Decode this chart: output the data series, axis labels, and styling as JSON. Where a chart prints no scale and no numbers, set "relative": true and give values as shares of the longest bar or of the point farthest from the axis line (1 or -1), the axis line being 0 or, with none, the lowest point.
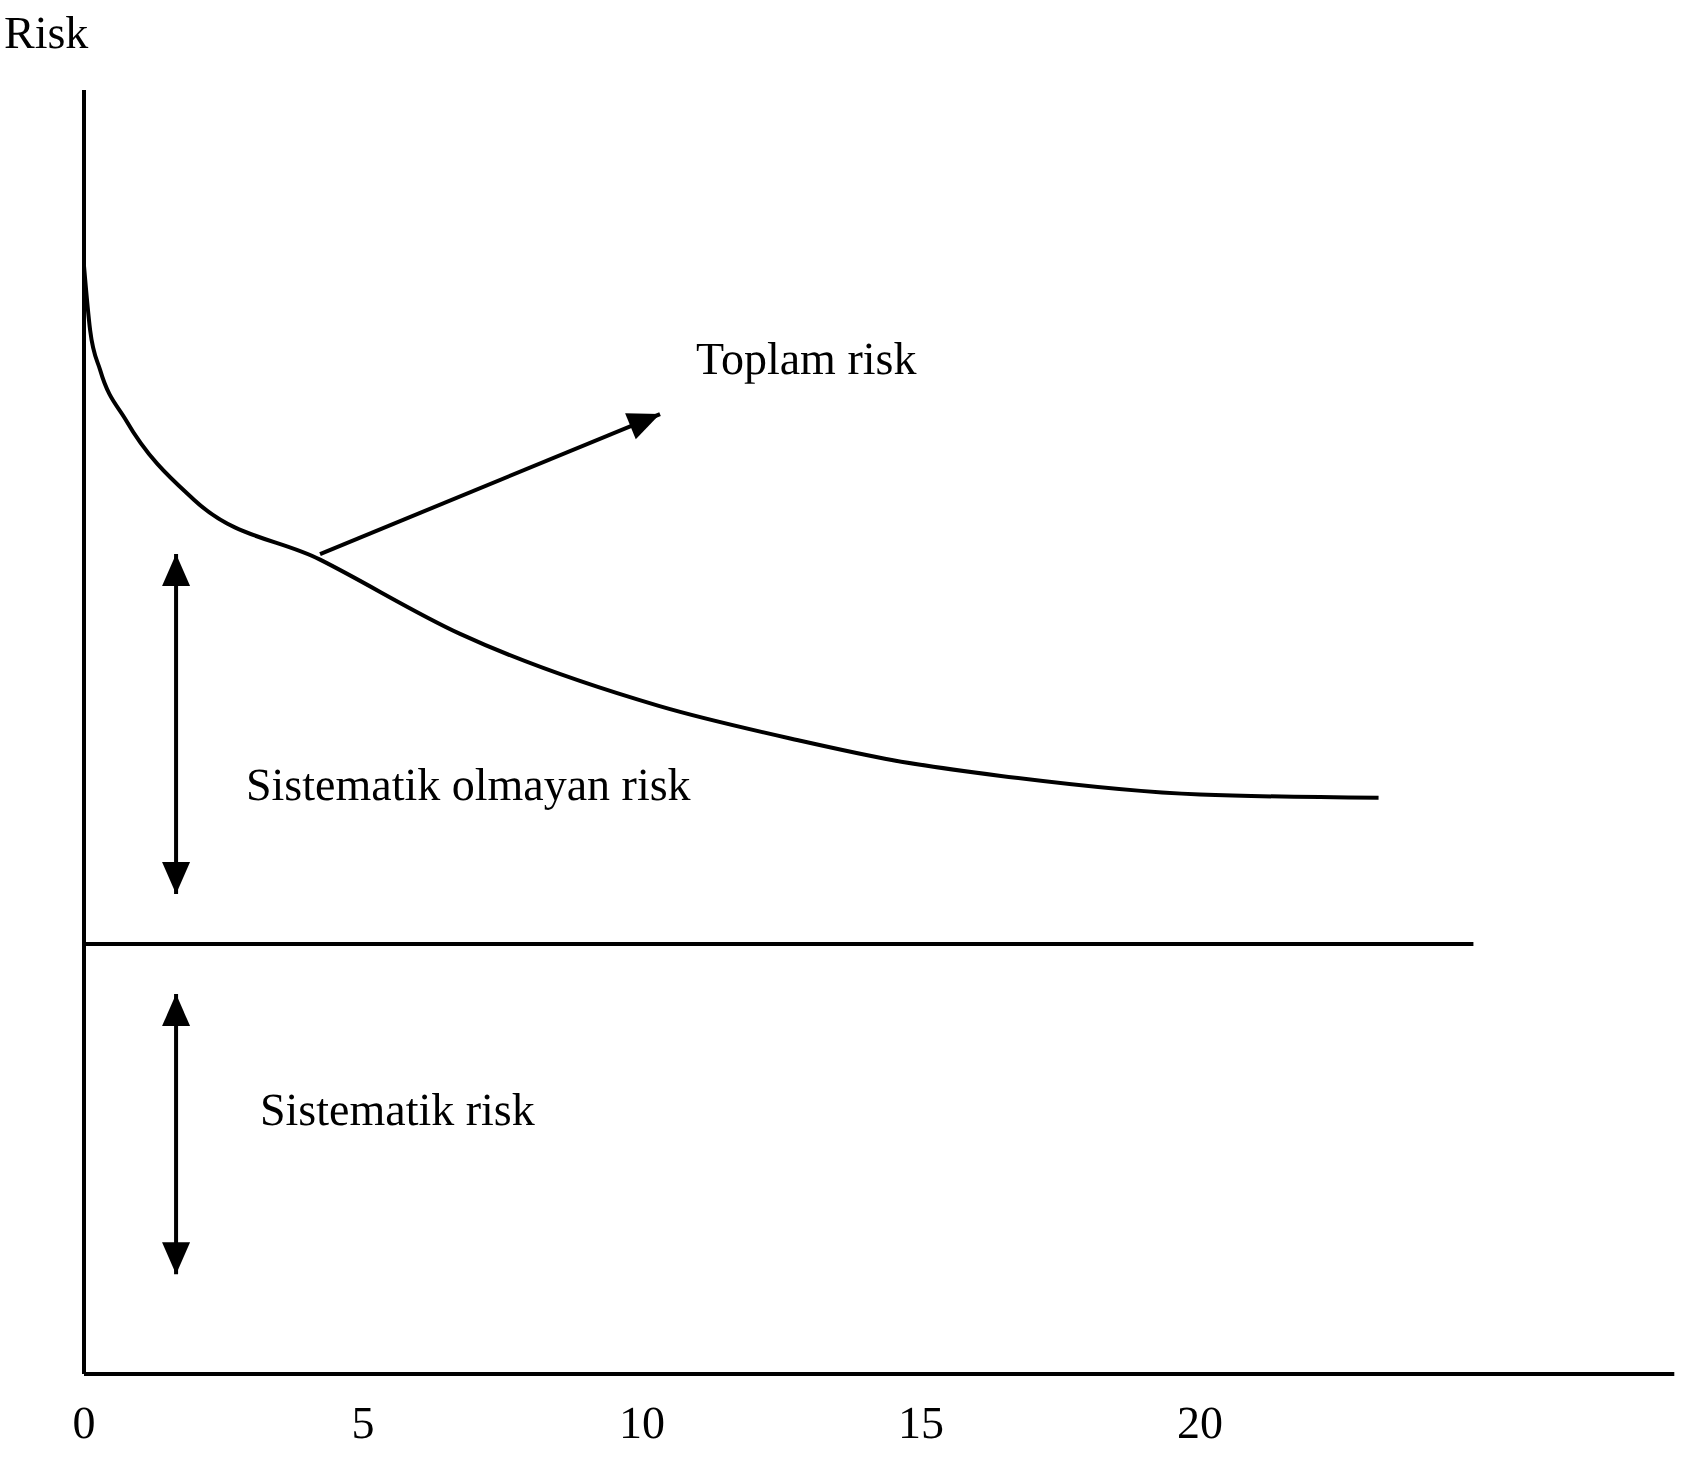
{
  "chart_data": {
    "type": "line",
    "ylabel": "Risk",
    "relative": true,
    "xlim": [
      0,
      28.5
    ],
    "xticks": [
      0,
      5,
      10,
      15,
      20
    ],
    "grid": false,
    "marker": "none",
    "line_style": "solid",
    "series": [
      {
        "color": "#000000",
        "x": [
          0,
          0.11,
          0.29,
          0.75,
          1.97,
          4.23,
          6.74,
          10.3,
          12.8,
          14.5,
          16.4,
          20.0,
          23.2
        ],
        "values": [
          1.0,
          0.942,
          0.906,
          0.861,
          0.789,
          0.735,
          0.668,
          0.603,
          0.572,
          0.554,
          0.54,
          0.523,
          0.52
        ]
      },
      {
        "color": "#000000",
        "x": [
          0,
          24.9
        ],
        "values": [
          0.388,
          0.388
        ]
      }
    ],
    "annotations": [
      {
        "text": "Toplam risk",
        "x": 4.23,
        "y": 0.74
      },
      "Sistematik olmayan risk",
      "Sistematik risk"
    ]
  }
}
